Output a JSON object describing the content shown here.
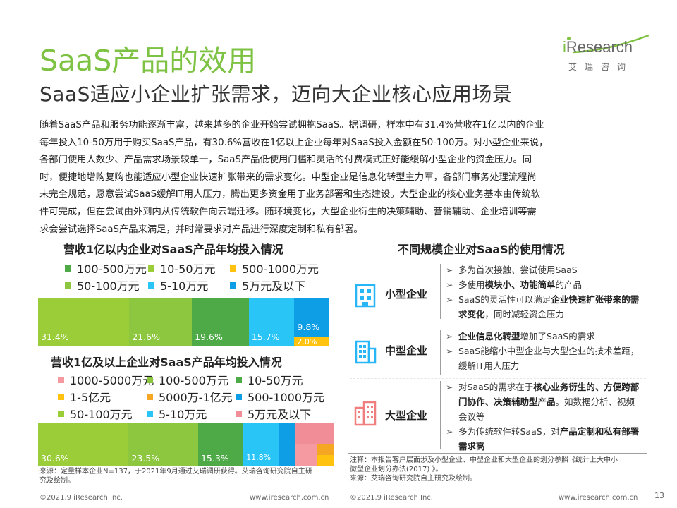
{
  "header": {
    "title": "SaaS产品的效用",
    "subtitle": "SaaS适应小企业扩张需求，迈向大企业核心应用场景",
    "logo": {
      "brand_i": "i",
      "brand_rest": "Research",
      "cn": "艾瑞咨询"
    }
  },
  "intro": {
    "lines": [
      "随着SaaS产品和服务功能逐渐丰富，越来越多的企业开始尝试拥抱SaaS。据调研，样本中有31.4%营收在1亿以内的企业",
      "每年投入10-50万用于购买SaaS产品，有30.6%营收在1亿以上企业每年对SaaS投入金额在50-100万。对小型企业来说，",
      "各部门使用人数少、产品需求场景较单一，SaaS产品低使用门槛和灵活的付费模式正好能缓解小型企业的资金压力。同",
      "时，便捷地增购复购也能适应小型企业快速扩张带来的需求变化。中型企业是信息化转型主力军，各部门事务处理流程尚",
      "未完全规范，愿意尝试SaaS缓解IT用人压力，腾出更多资金用于业务部署和生态建设。大型企业的核心业务基本由传统软",
      "件可完成，但在尝试由外到内从传统软件向云端迁移。随环境变化，大型企业衍生的决策辅助、营销辅助、企业培训等需",
      "求会尝试选择SaaS产品来满足，并时常要求对产品进行深度定制和私有部署。"
    ]
  },
  "chart_data": [
    {
      "type": "bar",
      "orientation": "horizontal-stacked-100",
      "title": "营收1亿以内企业对SaaS产品年均投入情况",
      "categories": [
        "营收1亿以内企业"
      ],
      "series": [
        {
          "name": "10-50万元",
          "values": [
            31.4
          ],
          "label": "31.4%",
          "color": "#9ACD38"
        },
        {
          "name": "50-100万元",
          "values": [
            21.6
          ],
          "label": "21.6%",
          "color": "#8DC63F"
        },
        {
          "name": "100-500万元",
          "values": [
            19.6
          ],
          "label": "19.6%",
          "color": "#4DAA47"
        },
        {
          "name": "5-10万元",
          "values": [
            15.7
          ],
          "label": "15.7%",
          "color": "#29C5F6"
        },
        {
          "name": "5万元及以下",
          "values": [
            9.8
          ],
          "label": "9.8%",
          "color": "#0E9EE6"
        },
        {
          "name": "500-1000万元",
          "values": [
            2.0
          ],
          "label": "2.0%",
          "color": "#FFC20E"
        }
      ],
      "legend": [
        {
          "name": "100-500万元",
          "color": "#4DAA47"
        },
        {
          "name": "10-50万元",
          "color": "#9ACD38"
        },
        {
          "name": "500-1000万元",
          "color": "#FFC20E"
        },
        {
          "name": "50-100万元",
          "color": "#8DC63F"
        },
        {
          "name": "5-10万元",
          "color": "#29C5F6"
        },
        {
          "name": "5万元及以下",
          "color": "#0E9EE6"
        }
      ]
    },
    {
      "type": "bar",
      "orientation": "horizontal-stacked-100",
      "title": "营收1亿及以上企业对SaaS产品年均投入情况",
      "categories": [
        "营收1亿及以上企业"
      ],
      "series": [
        {
          "name": "50-100万元",
          "values": [
            30.6
          ],
          "label": "30.6%",
          "color": "#9ACD38"
        },
        {
          "name": "100-500万元",
          "values": [
            23.5
          ],
          "label": "23.5%",
          "color": "#8DC63F"
        },
        {
          "name": "10-50万元",
          "values": [
            15.3
          ],
          "label": "15.3%",
          "color": "#4DAA47"
        },
        {
          "name": "5-10万元",
          "values": [
            11.8
          ],
          "label": "11.8%",
          "color": "#29C5F6"
        },
        {
          "name": "500-1000万元",
          "values": [
            5.9
          ],
          "label": "",
          "color": "#0E9EE6"
        },
        {
          "name": "5万元及以下",
          "values": [
            5.9
          ],
          "label": "",
          "color": "#F18D96"
        },
        {
          "name": "1000-5000万元",
          "values": [
            3.5
          ],
          "label": "",
          "color": "#F49AA0"
        },
        {
          "name": "5000万-1亿元",
          "values": [
            2.4
          ],
          "label": "",
          "color": "#F5A623"
        },
        {
          "name": "1-5亿元",
          "values": [
            1.2
          ],
          "label": "",
          "color": "#FFC20E"
        }
      ],
      "legend": [
        {
          "name": "1000-5000万元",
          "color": "#F49AA0"
        },
        {
          "name": "100-500万元",
          "color": "#8DC63F"
        },
        {
          "name": "10-50万元",
          "color": "#4DAA47"
        },
        {
          "name": "1-5亿元",
          "color": "#FFC20E"
        },
        {
          "name": "5000万-1亿元",
          "color": "#F5A623"
        },
        {
          "name": "500-1000万元",
          "color": "#0E9EE6"
        },
        {
          "name": "50-100万元",
          "color": "#9ACD38"
        },
        {
          "name": "5-10万元",
          "color": "#29C5F6"
        },
        {
          "name": "5万元及以下",
          "color": "#F18D96"
        }
      ]
    }
  ],
  "right": {
    "title": "不同规模企业对SaaS的使用情况",
    "rows": [
      {
        "label": "小型企业",
        "icon": "small-building-icon",
        "bullets": [
          [
            {
              "t": "多为首次接触、尝试使用SaaS",
              "b": false
            }
          ],
          [
            {
              "t": "多使用",
              "b": false
            },
            {
              "t": "模块小、功能简单",
              "b": true
            },
            {
              "t": "的产品",
              "b": false
            }
          ],
          [
            {
              "t": "SaaS的灵活性可以满足",
              "b": false
            },
            {
              "t": "企业快速扩张带来的需求变化",
              "b": true
            },
            {
              "t": "，同时减轻资金压力",
              "b": false
            }
          ]
        ]
      },
      {
        "label": "中型企业",
        "icon": "medium-building-icon",
        "bullets": [
          [
            {
              "t": "企业信息化转型",
              "b": true
            },
            {
              "t": "增加了SaaS的需求",
              "b": false
            }
          ],
          [
            {
              "t": "SaaS能缩小中型企业与大型企业的技术差距，缓解IT用人压力",
              "b": false
            }
          ]
        ]
      },
      {
        "label": "大型企业",
        "icon": "large-building-icon",
        "bullets": [
          [
            {
              "t": "对SaaS的需求在于",
              "b": false
            },
            {
              "t": "核心业务衍生的、方便跨部门协作、决策辅助型产品",
              "b": true
            },
            {
              "t": "。如数据分析、视频会议等",
              "b": false
            }
          ],
          [
            {
              "t": "多为传统软件转SaaS，对",
              "b": false
            },
            {
              "t": "产品定制和私有部署需求高",
              "b": true
            }
          ]
        ]
      }
    ],
    "note": [
      "注释：本报告客户层面涉及小型企业、中型企业和大型企业的划分参照《统计上大中小",
      "微型企业划分办法(2017) 》。",
      "来源：艾瑞咨询研究院自主研究及绘制。"
    ]
  },
  "left_note": [
    "来源：定量样本企业N=137，于2021年9月通过艾瑞调研获得。艾瑞咨询研究院自主研",
    "究及绘制。"
  ],
  "footer": {
    "left_copyright": "©2021.9 iResearch Inc.",
    "left_url": "www.iresearch.com.cn",
    "right_copyright": "©2021.9 iResearch Inc.",
    "right_url": "www.iresearch.com.cn",
    "page": "13"
  },
  "colors": {
    "title_green": "#7DC242",
    "icon_blue": "#29B6F6",
    "icon_red": "#F07E7E"
  }
}
